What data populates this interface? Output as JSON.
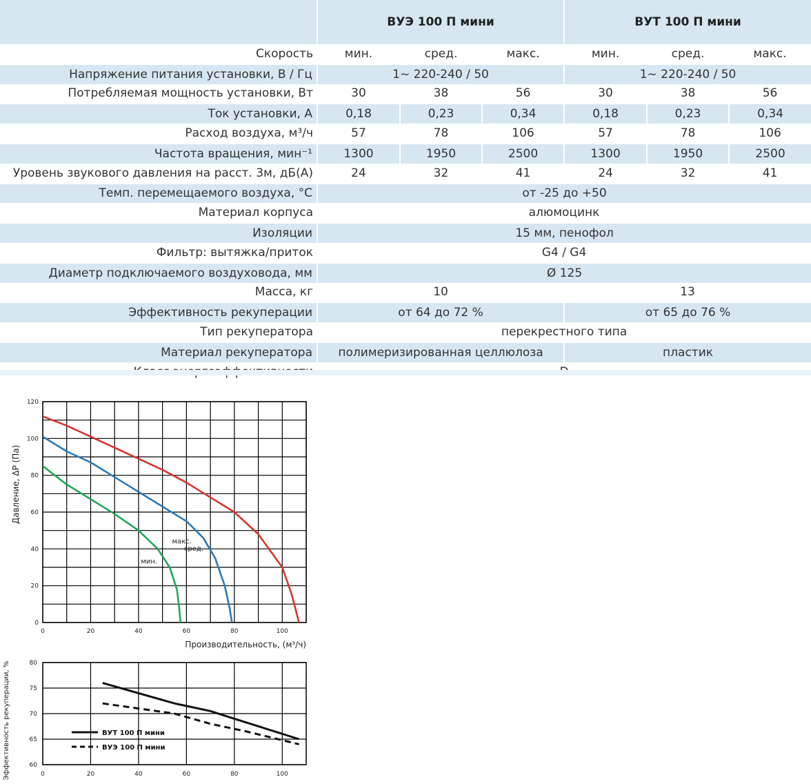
{
  "table": {
    "models": [
      "ВУЭ 100 П мини",
      "ВУТ 100 П мини"
    ],
    "rows": [
      {
        "label": "Скорость",
        "cells": [
          "мин.",
          "сред.",
          "макс.",
          "мин.",
          "сред.",
          "макс."
        ]
      },
      {
        "label": "Напряжение питания установки, В / Гц",
        "cells": [
          "1~ 220-240 / 50",
          "1~ 220-240 / 50"
        ]
      },
      {
        "label": "Потребляемая мощность установки, Вт",
        "cells": [
          "30",
          "38",
          "56",
          "30",
          "38",
          "56"
        ]
      },
      {
        "label": "Ток установки, А",
        "cells": [
          "0,18",
          "0,23",
          "0,34",
          "0,18",
          "0,23",
          "0,34"
        ]
      },
      {
        "label": "Расход воздуха, м³/ч",
        "cells": [
          "57",
          "78",
          "106",
          "57",
          "78",
          "106"
        ]
      },
      {
        "label": "Частота вращения, мин⁻¹",
        "cells": [
          "1300",
          "1950",
          "2500",
          "1300",
          "1950",
          "2500"
        ]
      },
      {
        "label": "Уровень звукового давления на расст. 3м, дБ(А)",
        "cells": [
          "24",
          "32",
          "41",
          "24",
          "32",
          "41"
        ]
      },
      {
        "label": "Темп. перемещаемого воздуха, °С",
        "cells": [
          "от -25 до +50"
        ]
      },
      {
        "label": "Материал корпуса",
        "cells": [
          "алюмоцинк"
        ]
      },
      {
        "label": "Изоляции",
        "cells": [
          "15 мм, пенофол"
        ]
      },
      {
        "label": "Фильтр: вытяжка/приток",
        "cells": [
          "G4 / G4"
        ]
      },
      {
        "label": "Диаметр подключаемого воздуховода, мм",
        "cells": [
          "Ø 125"
        ]
      },
      {
        "label": "Масса, кг",
        "cells": [
          "10",
          "13"
        ]
      },
      {
        "label": "Эффективность рекуперации",
        "cells": [
          "от 64 до 72 %",
          "от 65 до 76 %"
        ]
      },
      {
        "label": "Тип рекуператора",
        "cells": [
          "перекрестного типа"
        ]
      },
      {
        "label": "Материал рекуператора",
        "cells": [
          "полимеризированная целлюлоза",
          "пластик"
        ]
      },
      {
        "label": "Класс энергоэффективности",
        "cells": [
          "D"
        ]
      }
    ]
  },
  "chart_data": [
    {
      "type": "line",
      "xlabel": "Производительность, (м³/ч)",
      "ylabel": "Давление, ΔP (Па)",
      "xlim": [
        0,
        110
      ],
      "ylim": [
        0,
        120
      ],
      "xticks": [
        0,
        20,
        40,
        60,
        80,
        100
      ],
      "yticks": [
        0,
        20,
        40,
        60,
        80,
        100,
        120
      ],
      "grid": true,
      "series": [
        {
          "name": "макс.",
          "color": "#d9322e",
          "points": [
            [
              0,
              112
            ],
            [
              10,
              107
            ],
            [
              20,
              101
            ],
            [
              30,
              95
            ],
            [
              40,
              89
            ],
            [
              50,
              83
            ],
            [
              60,
              76
            ],
            [
              70,
              68
            ],
            [
              80,
              60
            ],
            [
              90,
              48
            ],
            [
              100,
              30
            ],
            [
              104,
              15
            ],
            [
              107,
              0
            ]
          ]
        },
        {
          "name": "сред.",
          "color": "#2a79b8",
          "points": [
            [
              0,
              101
            ],
            [
              10,
              93
            ],
            [
              20,
              87
            ],
            [
              30,
              79
            ],
            [
              40,
              71
            ],
            [
              50,
              63
            ],
            [
              60,
              55
            ],
            [
              67,
              46
            ],
            [
              72,
              35
            ],
            [
              76,
              20
            ],
            [
              78,
              8
            ],
            [
              79,
              0
            ]
          ]
        },
        {
          "name": "мин.",
          "color": "#1fa65a",
          "points": [
            [
              0,
              85
            ],
            [
              10,
              75
            ],
            [
              20,
              67
            ],
            [
              30,
              59
            ],
            [
              40,
              50
            ],
            [
              48,
              40
            ],
            [
              53,
              30
            ],
            [
              56,
              18
            ],
            [
              57,
              8
            ],
            [
              57.5,
              0
            ]
          ]
        }
      ]
    },
    {
      "type": "line",
      "ylabel": "Эффективность рекуперации, %",
      "xlim": [
        0,
        110
      ],
      "ylim": [
        60,
        80
      ],
      "xticks": [
        0,
        20,
        40,
        60,
        80,
        100
      ],
      "yticks": [
        60,
        65,
        70,
        75,
        80
      ],
      "grid": true,
      "legend": "bottom-left",
      "series": [
        {
          "name": "ВУТ 100 П мини",
          "dash": false,
          "points": [
            [
              25,
              76
            ],
            [
              40,
              74
            ],
            [
              55,
              72
            ],
            [
              70,
              70.5
            ],
            [
              80,
              69
            ],
            [
              107,
              65
            ]
          ]
        },
        {
          "name": "ВУЭ 100 П мини",
          "dash": true,
          "points": [
            [
              25,
              72
            ],
            [
              40,
              71
            ],
            [
              55,
              70
            ],
            [
              70,
              68
            ],
            [
              85,
              66.5
            ],
            [
              107,
              64
            ]
          ]
        }
      ]
    }
  ]
}
